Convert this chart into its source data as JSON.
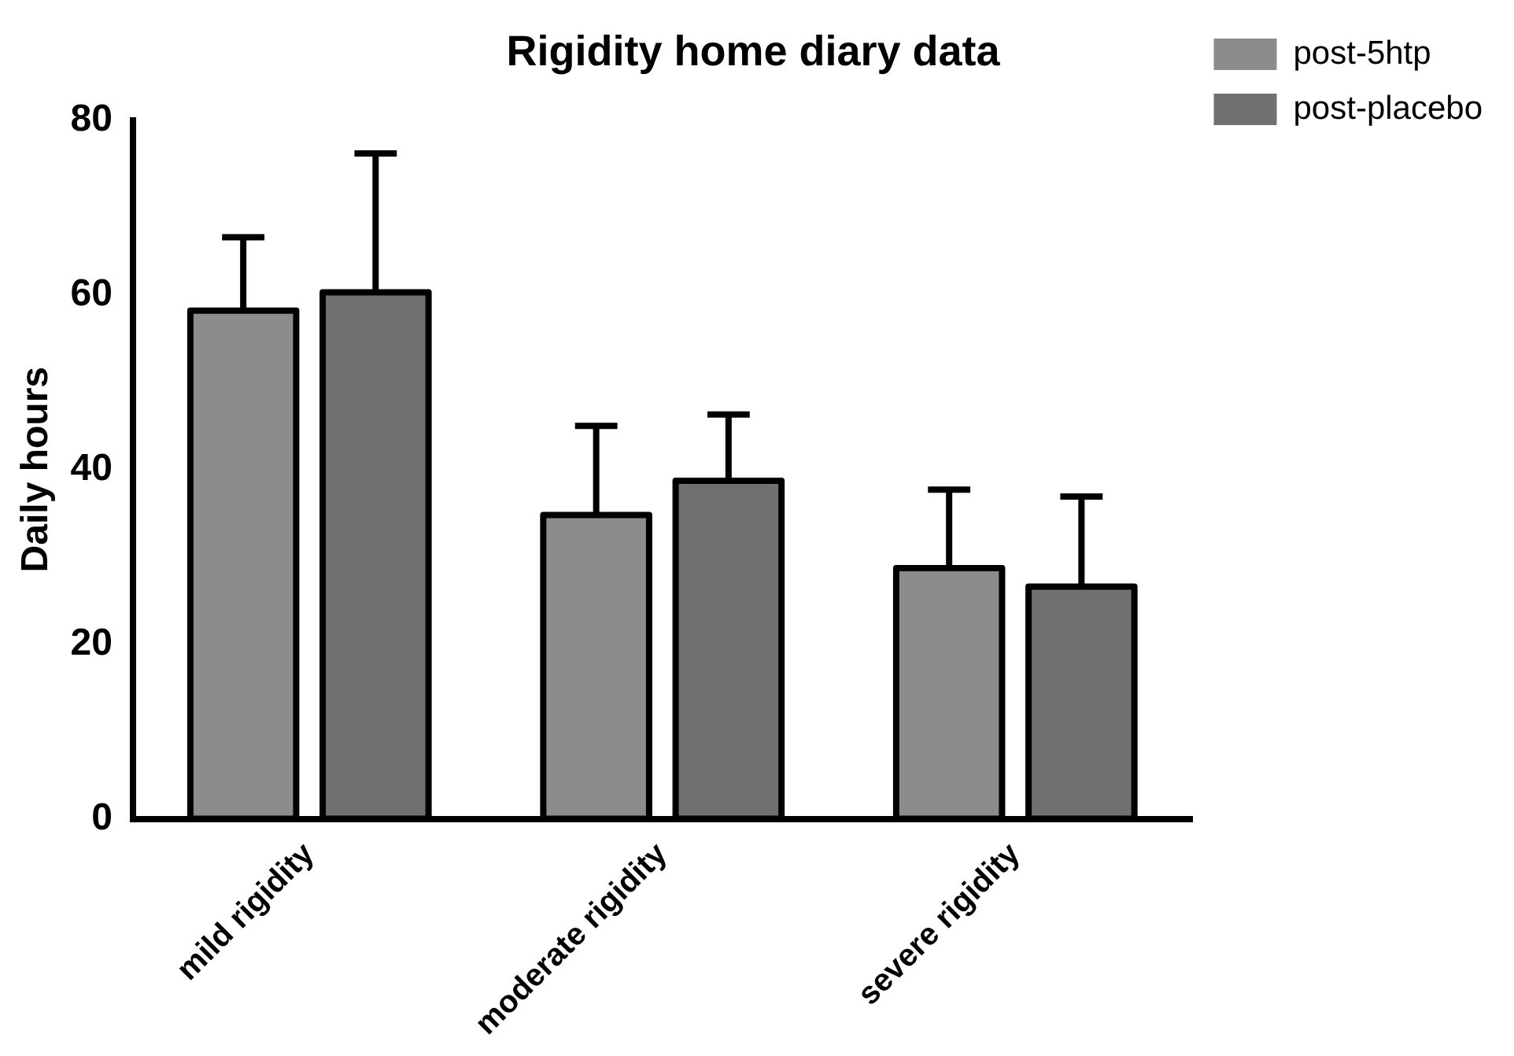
{
  "chart_data": {
    "type": "bar",
    "title": "Rigidity home diary data",
    "ylabel": "Daily hours",
    "categories": [
      "mild rigidity",
      "moderate rigidity",
      "severe rigidity"
    ],
    "series": [
      {
        "name": "post-5htp",
        "color": "#8c8c8c",
        "values": [
          58.2,
          34.8,
          28.7
        ],
        "errors": [
          [
            58.2,
            66.6
          ],
          [
            34.8,
            45.0
          ],
          [
            28.7,
            37.7
          ]
        ]
      },
      {
        "name": "post-placebo",
        "color": "#707070",
        "values": [
          60.3,
          38.7,
          26.6
        ],
        "errors": [
          [
            60.3,
            76.2
          ],
          [
            38.7,
            46.3
          ],
          [
            26.6,
            36.9
          ]
        ]
      }
    ],
    "ylim": [
      0,
      80
    ],
    "yticks": [
      0,
      20,
      40,
      60,
      80
    ],
    "grid": false,
    "legend": "top right"
  }
}
